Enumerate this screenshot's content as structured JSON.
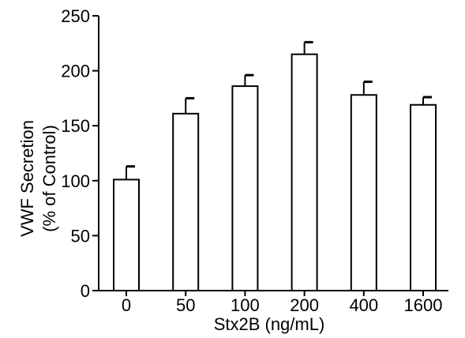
{
  "chart_data": {
    "type": "bar",
    "title": "",
    "xlabel": "Stx2B (ng/mL)",
    "ylabel_line1": "VWF Secretion",
    "ylabel_line2": "(% of Control)",
    "categories": [
      "0",
      "50",
      "100",
      "200",
      "400",
      "1600"
    ],
    "values": [
      101,
      161,
      186,
      215,
      178,
      169
    ],
    "errors": [
      12,
      14,
      10,
      11,
      12,
      7
    ],
    "ylim": [
      0,
      250
    ],
    "yticks": [
      0,
      50,
      100,
      150,
      200,
      250
    ],
    "grid": false,
    "bar_fill": "#ffffff",
    "bar_stroke": "#000000"
  }
}
